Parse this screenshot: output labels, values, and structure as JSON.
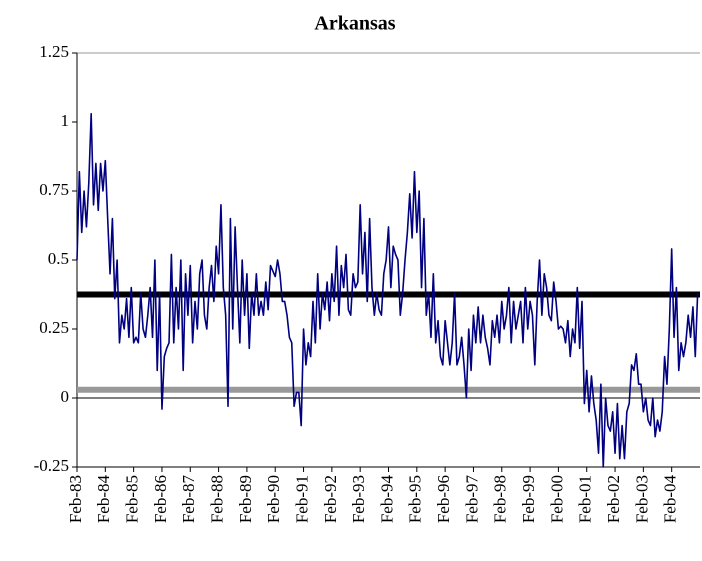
{
  "chart_data": {
    "type": "line",
    "title": "Arkansas",
    "categories": [
      "Feb-83",
      null,
      null,
      null,
      null,
      null,
      null,
      null,
      null,
      null,
      null,
      null,
      "Feb-84",
      null,
      null,
      null,
      null,
      null,
      null,
      null,
      null,
      null,
      null,
      null,
      "Feb-85",
      null,
      null,
      null,
      null,
      null,
      null,
      null,
      null,
      null,
      null,
      null,
      "Feb-86",
      null,
      null,
      null,
      null,
      null,
      null,
      null,
      null,
      null,
      null,
      null,
      "Feb-87",
      null,
      null,
      null,
      null,
      null,
      null,
      null,
      null,
      null,
      null,
      null,
      "Feb-88",
      null,
      null,
      null,
      null,
      null,
      null,
      null,
      null,
      null,
      null,
      null,
      "Feb-89",
      null,
      null,
      null,
      null,
      null,
      null,
      null,
      null,
      null,
      null,
      null,
      "Feb-90",
      null,
      null,
      null,
      null,
      null,
      null,
      null,
      null,
      null,
      null,
      null,
      "Feb-91",
      null,
      null,
      null,
      null,
      null,
      null,
      null,
      null,
      null,
      null,
      null,
      "Feb-92",
      null,
      null,
      null,
      null,
      null,
      null,
      null,
      null,
      null,
      null,
      null,
      "Feb-93",
      null,
      null,
      null,
      null,
      null,
      null,
      null,
      null,
      null,
      null,
      null,
      "Feb-94",
      null,
      null,
      null,
      null,
      null,
      null,
      null,
      null,
      null,
      null,
      null,
      "Feb-95",
      null,
      null,
      null,
      null,
      null,
      null,
      null,
      null,
      null,
      null,
      null,
      "Feb-96",
      null,
      null,
      null,
      null,
      null,
      null,
      null,
      null,
      null,
      null,
      null,
      "Feb-97",
      null,
      null,
      null,
      null,
      null,
      null,
      null,
      null,
      null,
      null,
      null,
      "Feb-98",
      null,
      null,
      null,
      null,
      null,
      null,
      null,
      null,
      null,
      null,
      null,
      "Feb-99",
      null,
      null,
      null,
      null,
      null,
      null,
      null,
      null,
      null,
      null,
      null,
      "Feb-00",
      null,
      null,
      null,
      null,
      null,
      null,
      null,
      null,
      null,
      null,
      null,
      "Feb-01",
      null,
      null,
      null,
      null,
      null,
      null,
      null,
      null,
      null,
      null,
      null,
      "Feb-02",
      null,
      null,
      null,
      null,
      null,
      null,
      null,
      null,
      null,
      null,
      null,
      "Feb-03",
      null,
      null,
      null,
      null,
      null,
      null,
      null,
      null,
      null,
      null,
      null,
      "Feb-04",
      null,
      null,
      null,
      null,
      null,
      null,
      null,
      null,
      null,
      null,
      null
    ],
    "series": [
      {
        "color": "#000080",
        "values": [
          0.5,
          0.82,
          0.6,
          0.75,
          0.62,
          0.78,
          1.03,
          0.7,
          0.85,
          0.68,
          0.85,
          0.75,
          0.86,
          0.65,
          0.45,
          0.65,
          0.36,
          0.5,
          0.2,
          0.3,
          0.25,
          0.36,
          0.22,
          0.4,
          0.2,
          0.22,
          0.2,
          0.38,
          0.25,
          0.22,
          0.3,
          0.4,
          0.22,
          0.5,
          0.1,
          0.38,
          -0.04,
          0.15,
          0.18,
          0.2,
          0.52,
          0.2,
          0.4,
          0.25,
          0.5,
          0.1,
          0.45,
          0.3,
          0.48,
          0.2,
          0.35,
          0.25,
          0.45,
          0.5,
          0.3,
          0.25,
          0.4,
          0.48,
          0.35,
          0.55,
          0.45,
          0.7,
          0.4,
          0.3,
          -0.03,
          0.65,
          0.25,
          0.62,
          0.4,
          0.2,
          0.5,
          0.3,
          0.45,
          0.18,
          0.38,
          0.3,
          0.45,
          0.3,
          0.35,
          0.3,
          0.42,
          0.32,
          0.48,
          0.46,
          0.44,
          0.5,
          0.45,
          0.35,
          0.35,
          0.3,
          0.22,
          0.2,
          -0.03,
          0.02,
          0.02,
          -0.1,
          0.25,
          0.12,
          0.2,
          0.15,
          0.35,
          0.2,
          0.45,
          0.25,
          0.38,
          0.32,
          0.42,
          0.28,
          0.45,
          0.35,
          0.55,
          0.3,
          0.48,
          0.4,
          0.52,
          0.32,
          0.3,
          0.45,
          0.4,
          0.42,
          0.7,
          0.45,
          0.6,
          0.35,
          0.65,
          0.4,
          0.3,
          0.38,
          0.32,
          0.3,
          0.45,
          0.5,
          0.62,
          0.4,
          0.55,
          0.52,
          0.5,
          0.3,
          0.38,
          0.5,
          0.6,
          0.74,
          0.58,
          0.82,
          0.6,
          0.75,
          0.4,
          0.65,
          0.3,
          0.38,
          0.22,
          0.45,
          0.2,
          0.28,
          0.15,
          0.12,
          0.28,
          0.2,
          0.12,
          0.2,
          0.38,
          0.12,
          0.15,
          0.22,
          0.12,
          0.0,
          0.25,
          0.1,
          0.3,
          0.2,
          0.33,
          0.2,
          0.3,
          0.22,
          0.18,
          0.12,
          0.28,
          0.22,
          0.3,
          0.2,
          0.35,
          0.25,
          0.3,
          0.4,
          0.2,
          0.35,
          0.25,
          0.3,
          0.35,
          0.2,
          0.4,
          0.25,
          0.35,
          0.3,
          0.12,
          0.35,
          0.5,
          0.3,
          0.45,
          0.4,
          0.3,
          0.28,
          0.42,
          0.35,
          0.25,
          0.26,
          0.25,
          0.2,
          0.28,
          0.15,
          0.25,
          0.2,
          0.4,
          0.18,
          0.35,
          -0.02,
          0.1,
          -0.05,
          0.08,
          -0.02,
          -0.08,
          -0.2,
          0.05,
          -0.25,
          0.0,
          -0.1,
          -0.12,
          -0.05,
          -0.2,
          -0.02,
          -0.22,
          -0.1,
          -0.22,
          -0.05,
          -0.02,
          0.12,
          0.1,
          0.16,
          0.05,
          0.05,
          -0.05,
          0.0,
          -0.08,
          -0.1,
          0.0,
          -0.14,
          -0.08,
          -0.12,
          -0.05,
          0.15,
          0.05,
          0.25,
          0.54,
          0.22,
          0.4,
          0.1,
          0.2,
          0.15,
          0.2,
          0.3,
          0.22,
          0.33,
          0.15,
          0.38
        ]
      }
    ],
    "reference_lines": [
      {
        "value": 0.375,
        "color": "#000000"
      },
      {
        "value": 0.03,
        "color": "#999999"
      }
    ],
    "ylim": [
      -0.25,
      1.25
    ],
    "yticks": [
      -0.25,
      0,
      0.25,
      0.5,
      0.75,
      1,
      1.25
    ]
  }
}
